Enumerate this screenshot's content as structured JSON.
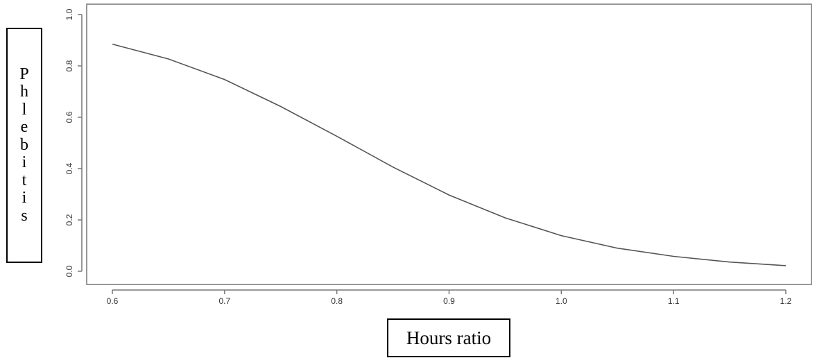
{
  "chart_data": {
    "type": "line",
    "title": "",
    "xlabel": "Hours ratio",
    "ylabel": "Phlebitis",
    "xlim": [
      0.6,
      1.2
    ],
    "ylim": [
      0.0,
      1.0
    ],
    "x_ticks": [
      "0.6",
      "0.7",
      "0.8",
      "0.9",
      "1.0",
      "1.1",
      "1.2"
    ],
    "y_ticks": [
      "0.0",
      "0.2",
      "0.4",
      "0.6",
      "0.8",
      "1.0"
    ],
    "grid": false,
    "series": [
      {
        "x": [
          0.6,
          0.65,
          0.7,
          0.75,
          0.8,
          0.85,
          0.9,
          0.95,
          1.0,
          1.05,
          1.1,
          1.15,
          1.2
        ],
        "y": [
          0.885,
          0.827,
          0.747,
          0.642,
          0.526,
          0.406,
          0.297,
          0.208,
          0.139,
          0.09,
          0.058,
          0.036,
          0.022
        ]
      }
    ],
    "colors": {
      "line": "#555555",
      "axis": "#777777"
    }
  }
}
